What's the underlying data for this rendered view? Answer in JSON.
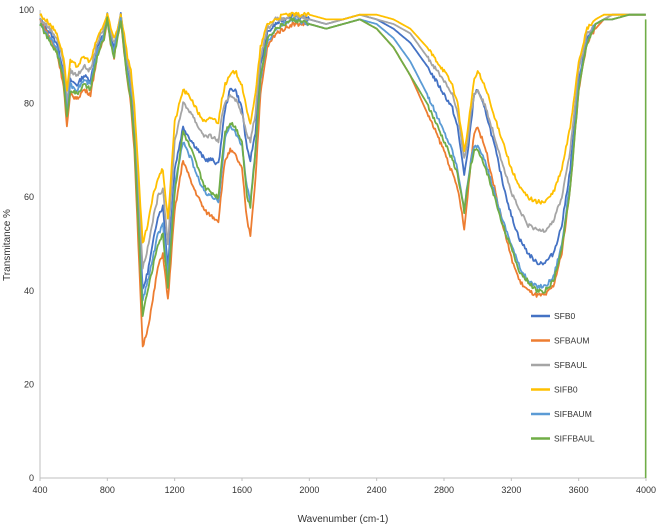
{
  "chart_data": {
    "type": "line",
    "title": "",
    "xlabel": "Wavenumber (cm-1)",
    "ylabel": "Transmitance %",
    "xlim": [
      400,
      4000
    ],
    "ylim": [
      0,
      100
    ],
    "xticks": [
      400,
      800,
      1200,
      1600,
      2000,
      2400,
      2800,
      3200,
      3600,
      4000
    ],
    "yticks": [
      0,
      20,
      40,
      60,
      80,
      100
    ],
    "grid": false,
    "legend_position": "bottom-right",
    "series": [
      {
        "name": "SFB0",
        "color": "#4472c4",
        "x": [
          400,
          460,
          500,
          540,
          560,
          580,
          620,
          660,
          700,
          740,
          780,
          800,
          820,
          840,
          860,
          880,
          900,
          920,
          940,
          960,
          990,
          1010,
          1040,
          1070,
          1100,
          1130,
          1160,
          1200,
          1250,
          1300,
          1340,
          1380,
          1420,
          1460,
          1480,
          1500,
          1530,
          1560,
          1600,
          1630,
          1650,
          1680,
          1710,
          1750,
          1800,
          1850,
          1900,
          2000,
          2100,
          2200,
          2300,
          2400,
          2500,
          2600,
          2700,
          2800,
          2850,
          2880,
          2900,
          2920,
          2940,
          2960,
          2980,
          3000,
          3050,
          3100,
          3150,
          3200,
          3250,
          3300,
          3350,
          3400,
          3450,
          3500,
          3550,
          3600,
          3650,
          3700,
          3750,
          3800,
          3900,
          3998
        ],
        "y": [
          98,
          95,
          93,
          87,
          78,
          85,
          84,
          86,
          85,
          92,
          95,
          99,
          94,
          92,
          95,
          99,
          93,
          87,
          83,
          75,
          55,
          40,
          44,
          50,
          56,
          58,
          45,
          66,
          75,
          72,
          70,
          68,
          68,
          67,
          73,
          79,
          83,
          83,
          79,
          70,
          68,
          74,
          88,
          95,
          97,
          98,
          99,
          98,
          97,
          98,
          99,
          98,
          96,
          93,
          88,
          82,
          79,
          75,
          70,
          65,
          69,
          76,
          82,
          83,
          78,
          71,
          63,
          56,
          51,
          48,
          46,
          46,
          48,
          54,
          66,
          85,
          94,
          97,
          98,
          99,
          99,
          99
        ]
      },
      {
        "name": "SFBAUM",
        "color": "#ed7d31",
        "x": [
          400,
          460,
          500,
          540,
          560,
          580,
          620,
          660,
          700,
          740,
          780,
          800,
          820,
          840,
          860,
          880,
          900,
          920,
          940,
          960,
          990,
          1010,
          1040,
          1070,
          1100,
          1130,
          1160,
          1200,
          1250,
          1300,
          1340,
          1380,
          1420,
          1460,
          1480,
          1500,
          1530,
          1560,
          1600,
          1630,
          1650,
          1680,
          1710,
          1750,
          1800,
          1850,
          1900,
          2000,
          2100,
          2200,
          2300,
          2400,
          2500,
          2600,
          2700,
          2800,
          2850,
          2880,
          2900,
          2920,
          2940,
          2960,
          2980,
          3000,
          3050,
          3100,
          3150,
          3200,
          3250,
          3300,
          3350,
          3400,
          3450,
          3500,
          3550,
          3600,
          3650,
          3700,
          3750,
          3800,
          3900,
          3998
        ],
        "y": [
          98,
          94,
          91,
          84,
          75,
          82,
          81,
          83,
          82,
          90,
          94,
          98,
          93,
          90,
          94,
          98,
          91,
          85,
          80,
          70,
          45,
          28,
          32,
          38,
          45,
          48,
          38,
          57,
          68,
          63,
          60,
          57,
          56,
          55,
          62,
          68,
          70,
          69,
          66,
          55,
          52,
          64,
          82,
          92,
          95,
          96,
          97,
          97,
          96,
          97,
          98,
          96,
          92,
          86,
          78,
          70,
          65,
          62,
          58,
          53,
          60,
          68,
          74,
          75,
          70,
          62,
          54,
          47,
          42,
          40,
          39,
          39,
          41,
          48,
          62,
          83,
          93,
          96,
          98,
          98,
          99,
          99
        ]
      },
      {
        "name": "SFBAUL",
        "color": "#a5a5a5",
        "x": [
          400,
          460,
          500,
          540,
          560,
          580,
          620,
          660,
          700,
          740,
          780,
          800,
          820,
          840,
          860,
          880,
          900,
          920,
          940,
          960,
          990,
          1010,
          1040,
          1070,
          1100,
          1130,
          1160,
          1200,
          1250,
          1300,
          1340,
          1380,
          1420,
          1460,
          1480,
          1500,
          1530,
          1560,
          1600,
          1630,
          1650,
          1680,
          1710,
          1750,
          1800,
          1850,
          1900,
          2000,
          2100,
          2200,
          2300,
          2400,
          2500,
          2600,
          2700,
          2800,
          2850,
          2880,
          2900,
          2920,
          2940,
          2960,
          2980,
          3000,
          3050,
          3100,
          3150,
          3200,
          3250,
          3300,
          3350,
          3400,
          3450,
          3500,
          3550,
          3600,
          3650,
          3700,
          3750,
          3800,
          3900,
          3998
        ],
        "y": [
          98,
          96,
          94,
          89,
          80,
          87,
          86,
          88,
          87,
          93,
          96,
          99,
          95,
          93,
          96,
          99,
          94,
          89,
          85,
          78,
          58,
          45,
          49,
          55,
          60,
          62,
          50,
          72,
          80,
          78,
          75,
          73,
          73,
          72,
          77,
          80,
          82,
          81,
          78,
          73,
          72,
          78,
          90,
          96,
          98,
          98,
          99,
          98,
          97,
          98,
          99,
          98,
          97,
          95,
          90,
          85,
          82,
          78,
          73,
          68,
          72,
          78,
          82,
          83,
          79,
          73,
          67,
          61,
          57,
          54,
          53,
          53,
          55,
          60,
          70,
          87,
          95,
          97,
          98,
          99,
          99,
          99
        ]
      },
      {
        "name": "SIFB0",
        "color": "#ffc000",
        "x": [
          400,
          460,
          500,
          540,
          560,
          580,
          620,
          660,
          700,
          740,
          780,
          800,
          820,
          840,
          860,
          880,
          900,
          920,
          940,
          960,
          990,
          1010,
          1040,
          1070,
          1100,
          1130,
          1160,
          1200,
          1250,
          1300,
          1340,
          1380,
          1420,
          1460,
          1480,
          1500,
          1530,
          1560,
          1600,
          1630,
          1650,
          1680,
          1710,
          1750,
          1800,
          1850,
          1900,
          2000,
          2100,
          2200,
          2300,
          2400,
          2500,
          2600,
          2700,
          2800,
          2850,
          2880,
          2900,
          2920,
          2940,
          2960,
          2980,
          3000,
          3050,
          3100,
          3150,
          3200,
          3250,
          3300,
          3350,
          3400,
          3450,
          3500,
          3550,
          3600,
          3650,
          3700,
          3750,
          3800,
          3900,
          3998
        ],
        "y": [
          99,
          97,
          95,
          90,
          83,
          89,
          88,
          90,
          89,
          94,
          97,
          99,
          96,
          94,
          96,
          99,
          95,
          90,
          87,
          80,
          62,
          50,
          54,
          60,
          64,
          66,
          55,
          76,
          83,
          81,
          78,
          76,
          77,
          76,
          81,
          84,
          86,
          87,
          84,
          78,
          76,
          82,
          92,
          97,
          98,
          99,
          99,
          99,
          98,
          98,
          99,
          99,
          98,
          96,
          92,
          87,
          84,
          80,
          75,
          70,
          74,
          80,
          85,
          87,
          83,
          77,
          72,
          66,
          62,
          60,
          59,
          59,
          61,
          66,
          75,
          89,
          96,
          98,
          99,
          99,
          99,
          99
        ]
      },
      {
        "name": "SIFBAUM",
        "color": "#5b9bd5",
        "x": [
          400,
          460,
          500,
          540,
          560,
          580,
          620,
          660,
          700,
          740,
          780,
          800,
          820,
          840,
          860,
          880,
          900,
          920,
          940,
          960,
          990,
          1010,
          1040,
          1070,
          1100,
          1130,
          1160,
          1200,
          1250,
          1300,
          1340,
          1380,
          1420,
          1460,
          1480,
          1500,
          1530,
          1560,
          1600,
          1630,
          1650,
          1680,
          1710,
          1750,
          1800,
          1850,
          1900,
          2000,
          2100,
          2200,
          2300,
          2400,
          2500,
          2600,
          2700,
          2800,
          2850,
          2880,
          2900,
          2920,
          2940,
          2960,
          2980,
          3000,
          3050,
          3100,
          3150,
          3200,
          3250,
          3300,
          3350,
          3400,
          3450,
          3500,
          3550,
          3600,
          3650,
          3700,
          3750,
          3800,
          3900,
          3998
        ],
        "y": [
          97,
          94,
          92,
          86,
          78,
          84,
          83,
          85,
          84,
          91,
          95,
          98,
          93,
          91,
          95,
          98,
          92,
          86,
          82,
          73,
          52,
          38,
          42,
          47,
          52,
          54,
          43,
          63,
          72,
          68,
          64,
          61,
          60,
          59,
          66,
          73,
          75,
          74,
          71,
          62,
          59,
          70,
          85,
          93,
          96,
          97,
          98,
          97,
          96,
          97,
          98,
          97,
          94,
          89,
          82,
          74,
          70,
          66,
          62,
          57,
          63,
          68,
          71,
          71,
          67,
          61,
          55,
          50,
          45,
          42,
          41,
          41,
          43,
          50,
          63,
          84,
          93,
          97,
          98,
          98,
          99,
          99
        ]
      },
      {
        "name": "SIFFBAUL",
        "color": "#70ad47",
        "x": [
          400,
          460,
          500,
          540,
          560,
          580,
          620,
          660,
          700,
          740,
          780,
          800,
          820,
          840,
          860,
          880,
          900,
          920,
          940,
          960,
          990,
          1010,
          1040,
          1070,
          1100,
          1130,
          1160,
          1200,
          1250,
          1300,
          1340,
          1380,
          1420,
          1460,
          1480,
          1500,
          1530,
          1560,
          1600,
          1630,
          1650,
          1680,
          1710,
          1750,
          1800,
          1850,
          1900,
          2000,
          2100,
          2200,
          2300,
          2400,
          2500,
          2600,
          2700,
          2800,
          2850,
          2880,
          2900,
          2920,
          2940,
          2960,
          2980,
          3000,
          3050,
          3100,
          3150,
          3200,
          3250,
          3300,
          3350,
          3400,
          3450,
          3500,
          3550,
          3600,
          3650,
          3700,
          3750,
          3800,
          3900,
          3998
        ],
        "y": [
          97,
          93,
          91,
          85,
          77,
          83,
          82,
          84,
          83,
          90,
          94,
          98,
          93,
          90,
          94,
          98,
          91,
          85,
          81,
          72,
          50,
          35,
          40,
          45,
          50,
          52,
          41,
          61,
          74,
          70,
          66,
          62,
          61,
          60,
          68,
          74,
          76,
          75,
          72,
          60,
          58,
          70,
          86,
          94,
          96,
          97,
          98,
          97,
          96,
          97,
          98,
          96,
          92,
          86,
          80,
          72,
          68,
          65,
          61,
          57,
          62,
          67,
          70,
          70,
          66,
          60,
          54,
          49,
          44,
          42,
          40,
          40,
          42,
          49,
          62,
          83,
          93,
          97,
          98,
          98,
          99,
          99
        ]
      }
    ]
  }
}
